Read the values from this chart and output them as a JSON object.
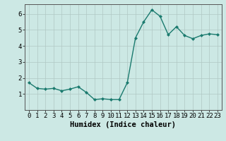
{
  "x": [
    0,
    1,
    2,
    3,
    4,
    5,
    6,
    7,
    8,
    9,
    10,
    11,
    12,
    13,
    14,
    15,
    16,
    17,
    18,
    19,
    20,
    21,
    22,
    23
  ],
  "y": [
    1.7,
    1.35,
    1.3,
    1.35,
    1.2,
    1.3,
    1.45,
    1.1,
    0.65,
    0.7,
    0.65,
    0.65,
    1.7,
    4.5,
    5.5,
    6.25,
    5.85,
    4.7,
    5.2,
    4.65,
    4.45,
    4.65,
    4.75,
    4.7
  ],
  "line_color": "#1a7a6e",
  "marker": "D",
  "marker_size": 2.0,
  "line_width": 1.0,
  "bg_color": "#cce8e4",
  "grid_color": "#b0c8c4",
  "xlabel": "Humidex (Indice chaleur)",
  "xlim": [
    -0.5,
    23.5
  ],
  "ylim": [
    0,
    6.6
  ],
  "yticks": [
    1,
    2,
    3,
    4,
    5,
    6
  ],
  "xticks": [
    0,
    1,
    2,
    3,
    4,
    5,
    6,
    7,
    8,
    9,
    10,
    11,
    12,
    13,
    14,
    15,
    16,
    17,
    18,
    19,
    20,
    21,
    22,
    23
  ],
  "xlabel_fontsize": 7.5,
  "tick_fontsize": 6.5,
  "spine_color": "#555555"
}
